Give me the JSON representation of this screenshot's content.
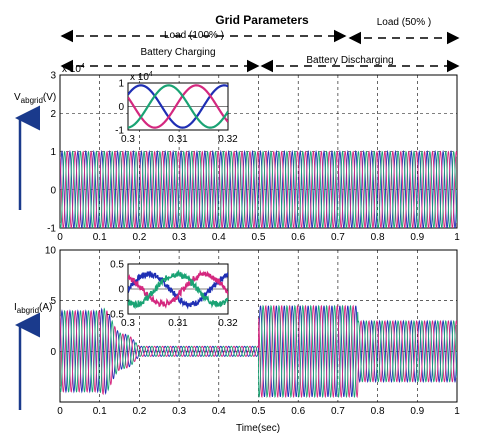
{
  "title": "Grid Parameters",
  "annotations": {
    "load_100": "Load (100% )",
    "load_50": "Load (50% )",
    "battery_charging": "Battery Charging",
    "battery_discharging": "Battery Discharging",
    "top_exp": "x 10",
    "top_exp_power": "4",
    "inset_exp": "x 10",
    "inset_exp_power": "4"
  },
  "colors": {
    "phase_a": "#1f2fb4",
    "phase_b": "#d4287f",
    "phase_c": "#1aa374",
    "arrow": "#1a3a8c"
  },
  "chart_data": [
    {
      "type": "line",
      "name": "voltage",
      "ylabel": "V",
      "ylabel_sub": "abgrid",
      "ylabel_unit": "(V)",
      "xlim": [
        0,
        1
      ],
      "ylim": [
        -1,
        3
      ],
      "xticks": [
        "0",
        "0.1",
        "0.2",
        "0.3",
        "0.4",
        "0.5",
        "0.6",
        "0.7",
        "0.8",
        "0.9",
        "1"
      ],
      "yticks": [
        "-1",
        "0",
        "1",
        "2",
        "3"
      ],
      "amplitude": 1,
      "inset": {
        "xlim": [
          0.3,
          0.32
        ],
        "ylim": [
          -1,
          1
        ],
        "xticks": [
          "0.3",
          "0.31",
          "0.32"
        ],
        "yticks": [
          "-1",
          "0",
          "1"
        ]
      }
    },
    {
      "type": "line",
      "name": "current",
      "ylabel": "I",
      "ylabel_sub": "abgrid",
      "ylabel_unit": "(A)",
      "xlabel": "Time(sec)",
      "xlim": [
        0,
        1
      ],
      "ylim": [
        -5,
        10
      ],
      "xticks": [
        "0",
        "0.1",
        "0.2",
        "0.3",
        "0.4",
        "0.5",
        "0.6",
        "0.7",
        "0.8",
        "0.9",
        "1"
      ],
      "yticks": [
        "0",
        "5",
        "10"
      ],
      "envelope": [
        {
          "t_start": 0,
          "t_end": 0.1,
          "amplitude": 4
        },
        {
          "t_start": 0.1,
          "t_end": 0.2,
          "amplitude": 1.5
        },
        {
          "t_start": 0.2,
          "t_end": 0.5,
          "amplitude": 0.5
        },
        {
          "t_start": 0.5,
          "t_end": 0.75,
          "amplitude": 4.5
        },
        {
          "t_start": 0.75,
          "t_end": 1,
          "amplitude": 3
        }
      ],
      "inset": {
        "xlim": [
          0.3,
          0.32
        ],
        "ylim": [
          -0.5,
          0.5
        ],
        "xticks": [
          "0.3",
          "0.31",
          "0.32"
        ],
        "yticks": [
          "0.5",
          "0",
          "-0.5"
        ]
      }
    }
  ]
}
